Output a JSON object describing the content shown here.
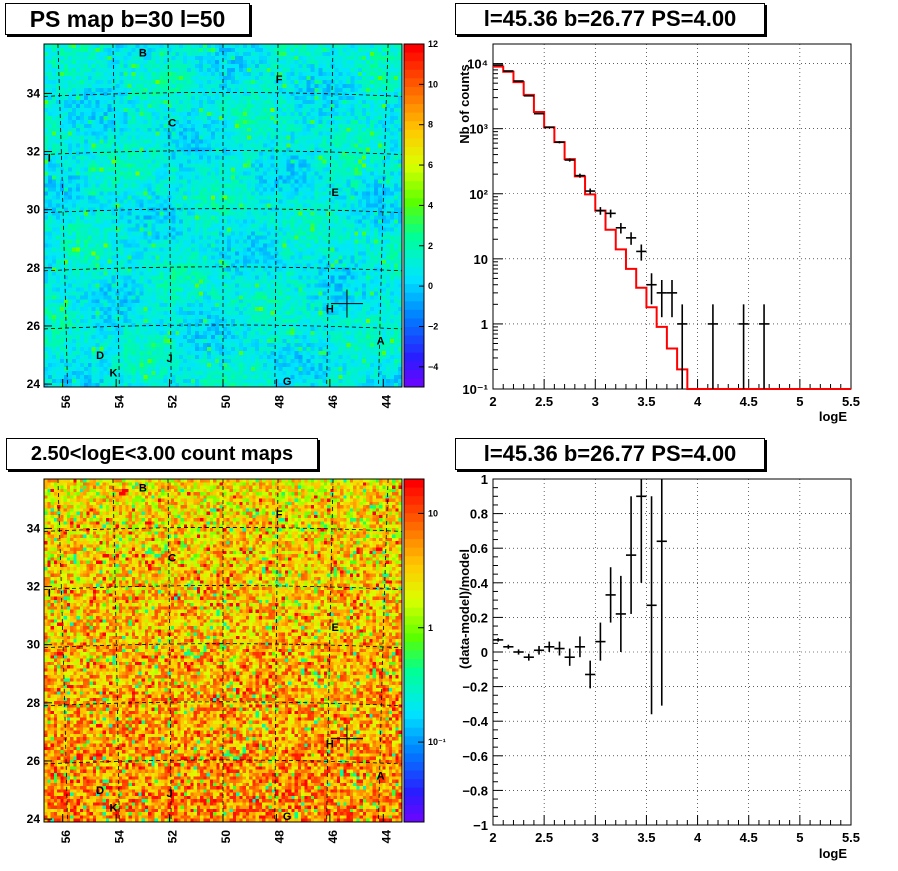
{
  "panels": {
    "ps_map": {
      "title": "PS map b=30 l=50",
      "x_ticks": [
        "56",
        "54",
        "52",
        "50",
        "48",
        "46",
        "44"
      ],
      "y_ticks": [
        "24",
        "26",
        "28",
        "30",
        "32",
        "34"
      ],
      "colorbar_ticks": [
        "12",
        "10",
        "8",
        "6",
        "4",
        "2",
        "0",
        "−2",
        "−4"
      ],
      "source_labels": [
        {
          "name": "B",
          "l": 53.0,
          "b": 35.4
        },
        {
          "name": "F",
          "l": 47.9,
          "b": 34.5
        },
        {
          "name": "C",
          "l": 51.9,
          "b": 33.0
        },
        {
          "name": "I",
          "l": 56.5,
          "b": 31.8
        },
        {
          "name": "E",
          "l": 45.8,
          "b": 30.6
        },
        {
          "name": "H",
          "l": 46.0,
          "b": 26.6
        },
        {
          "name": "A",
          "l": 44.1,
          "b": 25.5
        },
        {
          "name": "D",
          "l": 54.6,
          "b": 25.0
        },
        {
          "name": "J",
          "l": 52.0,
          "b": 24.9
        },
        {
          "name": "K",
          "l": 54.1,
          "b": 24.4
        },
        {
          "name": "G",
          "l": 47.6,
          "b": 24.1
        }
      ],
      "marker": {
        "l": 45.36,
        "b": 26.77
      }
    },
    "count_map": {
      "title": "2.50<logE<3.00 count maps",
      "x_ticks": [
        "56",
        "54",
        "52",
        "50",
        "48",
        "46",
        "44"
      ],
      "y_ticks": [
        "24",
        "26",
        "28",
        "30",
        "32",
        "34"
      ],
      "colorbar_ticks": [
        "10",
        "1",
        "10⁻¹"
      ],
      "source_labels": [
        {
          "name": "B",
          "l": 53.0,
          "b": 35.4
        },
        {
          "name": "F",
          "l": 47.9,
          "b": 34.5
        },
        {
          "name": "C",
          "l": 51.9,
          "b": 33.0
        },
        {
          "name": "I",
          "l": 56.5,
          "b": 31.8
        },
        {
          "name": "E",
          "l": 45.8,
          "b": 30.6
        },
        {
          "name": "H",
          "l": 46.0,
          "b": 26.6
        },
        {
          "name": "A",
          "l": 44.1,
          "b": 25.5
        },
        {
          "name": "D",
          "l": 54.6,
          "b": 25.0
        },
        {
          "name": "J",
          "l": 52.0,
          "b": 24.9
        },
        {
          "name": "K",
          "l": 54.1,
          "b": 24.4
        },
        {
          "name": "G",
          "l": 47.6,
          "b": 24.1
        }
      ],
      "marker": {
        "l": 45.36,
        "b": 26.77
      }
    },
    "spectrum": {
      "title": "l=45.36 b=26.77 PS=4.00",
      "xlabel": "logE",
      "ylabel": "Nb of counts",
      "x_ticks": [
        "2",
        "2.5",
        "3",
        "3.5",
        "4",
        "4.5",
        "5",
        "5.5"
      ],
      "y_ticks": [
        "10⁻¹",
        "1",
        "10",
        "10²",
        "10³",
        "10⁴"
      ]
    },
    "residual": {
      "title": "l=45.36 b=26.77 PS=4.00",
      "xlabel": "logE",
      "ylabel": "(data-model)/model",
      "x_ticks": [
        "2",
        "2.5",
        "3",
        "3.5",
        "4",
        "4.5",
        "5",
        "5.5"
      ],
      "y_ticks": [
        "−1",
        "−0.8",
        "−0.6",
        "−0.4",
        "−0.2",
        "0",
        "0.2",
        "0.4",
        "0.6",
        "0.8",
        "1"
      ]
    }
  },
  "colors": {
    "model_line": "#ff0000",
    "data_points": "#000000",
    "grid": "#000000"
  },
  "chart_data": [
    {
      "type": "heatmap",
      "title": "PS map b=30 l=50",
      "xlim": [
        56.7,
        43.3
      ],
      "ylim": [
        23.9,
        35.7
      ],
      "zlim": [
        -5,
        12
      ],
      "colorscale": "rainbow",
      "grid": true
    },
    {
      "type": "heatmap",
      "title": "2.50<logE<3.00 count maps",
      "xlim": [
        56.7,
        43.3
      ],
      "ylim": [
        23.9,
        35.7
      ],
      "zlim": [
        0.02,
        20
      ],
      "zscale": "log",
      "colorscale": "rainbow",
      "grid": true
    },
    {
      "type": "line",
      "title": "l=45.36 b=26.77 PS=4.00",
      "xlabel": "logE",
      "ylabel": "Nb of counts",
      "xlim": [
        2,
        5.5
      ],
      "ylim": [
        0.1,
        20000
      ],
      "yscale": "log",
      "grid": true,
      "model_bin_edges": [
        2.0,
        2.1,
        2.2,
        2.3,
        2.4,
        2.5,
        2.6,
        2.7,
        2.8,
        2.9,
        3.0,
        3.1,
        3.2,
        3.3,
        3.4,
        3.5,
        3.6,
        3.7,
        3.8,
        3.9,
        4.0,
        4.1,
        4.2,
        4.3,
        4.4,
        4.5,
        4.6,
        4.7,
        4.8,
        4.9,
        5.0,
        5.1,
        5.2,
        5.3,
        5.4,
        5.5
      ],
      "model_values": [
        9000,
        7500,
        5200,
        3300,
        1800,
        1050,
        620,
        340,
        185,
        98,
        55,
        28,
        14,
        7,
        3.6,
        1.8,
        0.9,
        0.42,
        0.2,
        0.1,
        0.1,
        0.1,
        0.1,
        0.1,
        0.1,
        0.1,
        0.1,
        0.1,
        0.1,
        0.1,
        0.1,
        0.1,
        0.1,
        0.1,
        0.1
      ],
      "series": [
        {
          "x": [
            2.05,
            2.15,
            2.25,
            2.35,
            2.45,
            2.55,
            2.65,
            2.75,
            2.85,
            2.95,
            3.05,
            3.15,
            3.25,
            3.35,
            3.45,
            3.55,
            3.65,
            3.75,
            3.85,
            4.15,
            4.45,
            4.65
          ],
          "y": [
            9500,
            7700,
            5400,
            3200,
            1700,
            1050,
            620,
            330,
            190,
            110,
            55,
            50,
            30,
            21,
            13,
            4,
            3,
            3,
            1,
            1,
            1,
            1
          ]
        }
      ]
    },
    {
      "type": "scatter",
      "title": "l=45.36 b=26.77 PS=4.00",
      "xlabel": "logE",
      "ylabel": "(data-model)/model",
      "xlim": [
        2,
        5.5
      ],
      "ylim": [
        -1,
        1
      ],
      "grid": true,
      "series": [
        {
          "x": [
            2.05,
            2.15,
            2.25,
            2.35,
            2.45,
            2.55,
            2.65,
            2.75,
            2.85,
            2.95,
            3.05,
            3.15,
            3.25,
            3.35,
            3.45,
            3.55,
            3.65
          ],
          "y": [
            0.07,
            0.03,
            0.0,
            -0.03,
            0.01,
            0.03,
            0.02,
            -0.03,
            0.03,
            -0.13,
            0.06,
            0.33,
            0.22,
            0.56,
            0.9,
            0.27,
            0.64
          ],
          "err": [
            0.01,
            0.012,
            0.015,
            0.02,
            0.025,
            0.03,
            0.04,
            0.05,
            0.06,
            0.08,
            0.11,
            0.16,
            0.22,
            0.34,
            0.5,
            0.63,
            0.95
          ]
        }
      ]
    }
  ]
}
